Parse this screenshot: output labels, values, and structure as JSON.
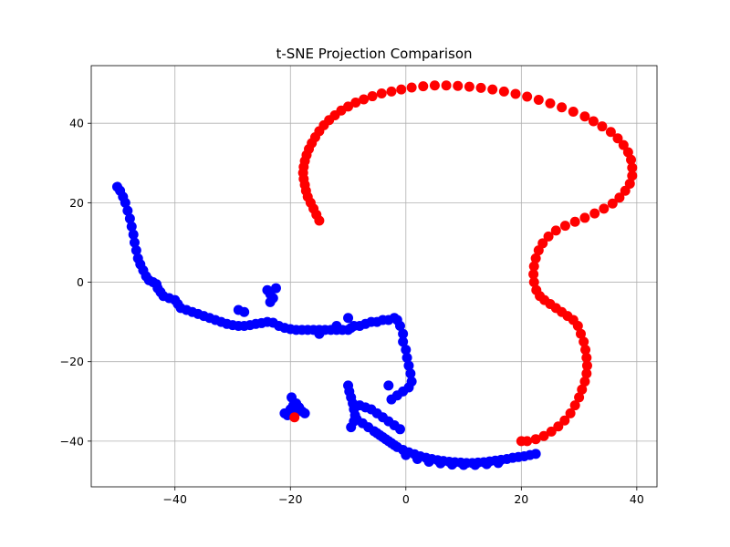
{
  "chart_data": {
    "type": "scatter",
    "title": "t-SNE Projection Comparison",
    "xlabel": "",
    "ylabel": "",
    "xlim": [
      -54.5,
      43.5
    ],
    "ylim": [
      -51.5,
      54.5
    ],
    "xticks": [
      -40,
      -20,
      0,
      20,
      40
    ],
    "yticks": [
      -40,
      -20,
      0,
      20,
      40
    ],
    "xtick_labels": [
      "−40",
      "−20",
      "0",
      "20",
      "40"
    ],
    "ytick_labels": [
      "−40",
      "−20",
      "0",
      "20",
      "40"
    ],
    "grid": true,
    "series": [
      {
        "color": "#0000ff",
        "points": [
          [
            -50,
            24
          ],
          [
            -49.5,
            23
          ],
          [
            -49,
            21.5
          ],
          [
            -48.6,
            20
          ],
          [
            -48.2,
            18
          ],
          [
            -47.8,
            16
          ],
          [
            -47.5,
            14
          ],
          [
            -47.2,
            12
          ],
          [
            -47,
            10
          ],
          [
            -46.7,
            8
          ],
          [
            -46.4,
            6
          ],
          [
            -46,
            4.5
          ],
          [
            -45.5,
            3
          ],
          [
            -45,
            1.5
          ],
          [
            -44.5,
            0.5
          ],
          [
            -43.8,
            0
          ],
          [
            -43.2,
            -0.5
          ],
          [
            -43,
            -1.5
          ],
          [
            -42.5,
            -2.5
          ],
          [
            -42,
            -3.5
          ],
          [
            -41,
            -4
          ],
          [
            -40,
            -4.5
          ],
          [
            -39.5,
            -5.5
          ],
          [
            -39,
            -6.5
          ],
          [
            -38,
            -7
          ],
          [
            -37,
            -7.5
          ],
          [
            -36,
            -8
          ],
          [
            -35,
            -8.5
          ],
          [
            -34,
            -9
          ],
          [
            -33,
            -9.5
          ],
          [
            -32,
            -10
          ],
          [
            -31,
            -10.5
          ],
          [
            -30,
            -10.8
          ],
          [
            -29,
            -11
          ],
          [
            -28,
            -11
          ],
          [
            -27,
            -10.8
          ],
          [
            -26,
            -10.5
          ],
          [
            -25,
            -10.3
          ],
          [
            -24,
            -10
          ],
          [
            -23,
            -10.2
          ],
          [
            -22,
            -11
          ],
          [
            -21,
            -11.5
          ],
          [
            -20,
            -11.8
          ],
          [
            -19,
            -12
          ],
          [
            -18,
            -12
          ],
          [
            -17,
            -12
          ],
          [
            -16,
            -12
          ],
          [
            -15,
            -12
          ],
          [
            -14,
            -12
          ],
          [
            -13,
            -12
          ],
          [
            -12,
            -12
          ],
          [
            -11,
            -12
          ],
          [
            -10,
            -12
          ],
          [
            -9.5,
            -11.5
          ],
          [
            -9,
            -11
          ],
          [
            -8,
            -11
          ],
          [
            -7,
            -10.5
          ],
          [
            -6,
            -10
          ],
          [
            -5,
            -10
          ],
          [
            -4,
            -9.5
          ],
          [
            -3,
            -9.5
          ],
          [
            -2,
            -9
          ],
          [
            -1.5,
            -9.5
          ],
          [
            -1,
            -11
          ],
          [
            -0.5,
            -13
          ],
          [
            -0.5,
            -15
          ],
          [
            0,
            -17
          ],
          [
            0.2,
            -19
          ],
          [
            0.5,
            -21
          ],
          [
            0.8,
            -23
          ],
          [
            1,
            -25
          ],
          [
            0.5,
            -26.5
          ],
          [
            -0.5,
            -27.5
          ],
          [
            -1.5,
            -28.5
          ],
          [
            -2.5,
            -29.5
          ],
          [
            -3,
            -26
          ],
          [
            -24,
            -2
          ],
          [
            -23.5,
            -3
          ],
          [
            -23,
            -4
          ],
          [
            -23.5,
            -5
          ],
          [
            -22.5,
            -1.5
          ],
          [
            -29,
            -7
          ],
          [
            -28,
            -7.5
          ],
          [
            -15,
            -13
          ],
          [
            -10,
            -9
          ],
          [
            -12,
            -11
          ],
          [
            -10,
            -26
          ],
          [
            -9.8,
            -27.5
          ],
          [
            -9.5,
            -29
          ],
          [
            -9.2,
            -30.5
          ],
          [
            -9,
            -32
          ],
          [
            -8.8,
            -33.5
          ],
          [
            -9,
            -35
          ],
          [
            -9.5,
            -36.5
          ],
          [
            -8,
            -31
          ],
          [
            -7,
            -31.5
          ],
          [
            -6,
            -32
          ],
          [
            -5,
            -33
          ],
          [
            -4,
            -34
          ],
          [
            -3,
            -35
          ],
          [
            -2,
            -36
          ],
          [
            -1,
            -37
          ],
          [
            -8.5,
            -34.5
          ],
          [
            -7.5,
            -35.5
          ],
          [
            -6.5,
            -36.5
          ],
          [
            -5.5,
            -37.5
          ],
          [
            -4.5,
            -38.5
          ],
          [
            -3.5,
            -39.5
          ],
          [
            -2.5,
            -40.5
          ],
          [
            -1.5,
            -41.5
          ],
          [
            -0.5,
            -42.2
          ],
          [
            0.5,
            -42.8
          ],
          [
            1.5,
            -43.3
          ],
          [
            2.5,
            -43.8
          ],
          [
            3.5,
            -44.2
          ],
          [
            4.5,
            -44.5
          ],
          [
            5.5,
            -44.8
          ],
          [
            6.5,
            -45
          ],
          [
            7.5,
            -45.2
          ],
          [
            8.5,
            -45.3
          ],
          [
            9.5,
            -45.4
          ],
          [
            10.5,
            -45.5
          ],
          [
            11.5,
            -45.5
          ],
          [
            12.5,
            -45.4
          ],
          [
            13.5,
            -45.3
          ],
          [
            14.5,
            -45.1
          ],
          [
            15.5,
            -44.9
          ],
          [
            16.5,
            -44.7
          ],
          [
            17.5,
            -44.5
          ],
          [
            18.5,
            -44.2
          ],
          [
            19.5,
            -44
          ],
          [
            20.5,
            -43.8
          ],
          [
            21.5,
            -43.5
          ],
          [
            22.5,
            -43.2
          ],
          [
            -5,
            -38
          ],
          [
            -4,
            -39
          ],
          [
            -3,
            -40
          ],
          [
            -2,
            -41
          ],
          [
            0,
            -43.5
          ],
          [
            2,
            -44.5
          ],
          [
            4,
            -45.2
          ],
          [
            6,
            -45.6
          ],
          [
            8,
            -45.9
          ],
          [
            10,
            -46
          ],
          [
            12,
            -46
          ],
          [
            14,
            -45.8
          ],
          [
            16,
            -45.5
          ],
          [
            -20.5,
            -33.5
          ],
          [
            -20,
            -32
          ],
          [
            -19.5,
            -31
          ],
          [
            -19,
            -30.5
          ],
          [
            -18.5,
            -31.5
          ],
          [
            -18,
            -32.5
          ],
          [
            -17.5,
            -33
          ],
          [
            -21,
            -33
          ],
          [
            -19.8,
            -29
          ],
          [
            -18.8,
            -32
          ]
        ]
      },
      {
        "color": "#ff0000",
        "points": [
          [
            -15,
            15.5
          ],
          [
            -15.5,
            17
          ],
          [
            -16,
            18.5
          ],
          [
            -16.5,
            20
          ],
          [
            -17,
            21.5
          ],
          [
            -17.3,
            23
          ],
          [
            -17.5,
            24.5
          ],
          [
            -17.7,
            26
          ],
          [
            -17.8,
            27.5
          ],
          [
            -17.7,
            29
          ],
          [
            -17.5,
            30.5
          ],
          [
            -17.2,
            32
          ],
          [
            -16.8,
            33.5
          ],
          [
            -16.3,
            35
          ],
          [
            -15.7,
            36.5
          ],
          [
            -15,
            38
          ],
          [
            -14.2,
            39.5
          ],
          [
            -13.3,
            40.8
          ],
          [
            -12.3,
            42
          ],
          [
            -11.2,
            43.2
          ],
          [
            -10,
            44.2
          ],
          [
            -8.7,
            45.2
          ],
          [
            -7.3,
            46
          ],
          [
            -5.8,
            46.8
          ],
          [
            -4.2,
            47.5
          ],
          [
            -2.5,
            48
          ],
          [
            -0.8,
            48.5
          ],
          [
            1,
            49
          ],
          [
            3,
            49.3
          ],
          [
            5,
            49.5
          ],
          [
            7,
            49.5
          ],
          [
            9,
            49.4
          ],
          [
            11,
            49.2
          ],
          [
            13,
            48.9
          ],
          [
            15,
            48.5
          ],
          [
            17,
            48
          ],
          [
            19,
            47.4
          ],
          [
            21,
            46.7
          ],
          [
            23,
            45.9
          ],
          [
            25,
            45
          ],
          [
            27,
            44
          ],
          [
            29,
            42.9
          ],
          [
            31,
            41.7
          ],
          [
            32.5,
            40.5
          ],
          [
            34,
            39.2
          ],
          [
            35.5,
            37.8
          ],
          [
            36.7,
            36.2
          ],
          [
            37.7,
            34.5
          ],
          [
            38.5,
            32.7
          ],
          [
            39,
            30.8
          ],
          [
            39.2,
            28.8
          ],
          [
            39.2,
            26.8
          ],
          [
            38.8,
            24.8
          ],
          [
            38,
            23
          ],
          [
            37,
            21.3
          ],
          [
            35.8,
            19.8
          ],
          [
            34.3,
            18.5
          ],
          [
            32.7,
            17.3
          ],
          [
            31,
            16.2
          ],
          [
            29.3,
            15.2
          ],
          [
            27.6,
            14.2
          ],
          [
            26,
            13
          ],
          [
            24.7,
            11.5
          ],
          [
            23.7,
            9.8
          ],
          [
            23,
            8
          ],
          [
            22.5,
            6
          ],
          [
            22.2,
            4
          ],
          [
            22.1,
            2
          ],
          [
            22.2,
            0
          ],
          [
            22.6,
            -2
          ],
          [
            23.2,
            -3.5
          ],
          [
            24,
            -4.5
          ],
          [
            25,
            -5.5
          ],
          [
            26,
            -6.5
          ],
          [
            27,
            -7.5
          ],
          [
            28,
            -8.5
          ],
          [
            29,
            -9.5
          ],
          [
            29.8,
            -11
          ],
          [
            30.3,
            -13
          ],
          [
            30.8,
            -15
          ],
          [
            31.1,
            -17
          ],
          [
            31.3,
            -19
          ],
          [
            31.4,
            -21
          ],
          [
            31.3,
            -23
          ],
          [
            31,
            -25
          ],
          [
            30.5,
            -27
          ],
          [
            30,
            -29
          ],
          [
            29.3,
            -31
          ],
          [
            28.5,
            -33
          ],
          [
            27.5,
            -34.8
          ],
          [
            26.4,
            -36.3
          ],
          [
            25.2,
            -37.6
          ],
          [
            23.9,
            -38.7
          ],
          [
            22.5,
            -39.5
          ],
          [
            21,
            -40
          ],
          [
            20,
            -40
          ],
          [
            -19.3,
            -34
          ]
        ]
      }
    ]
  }
}
